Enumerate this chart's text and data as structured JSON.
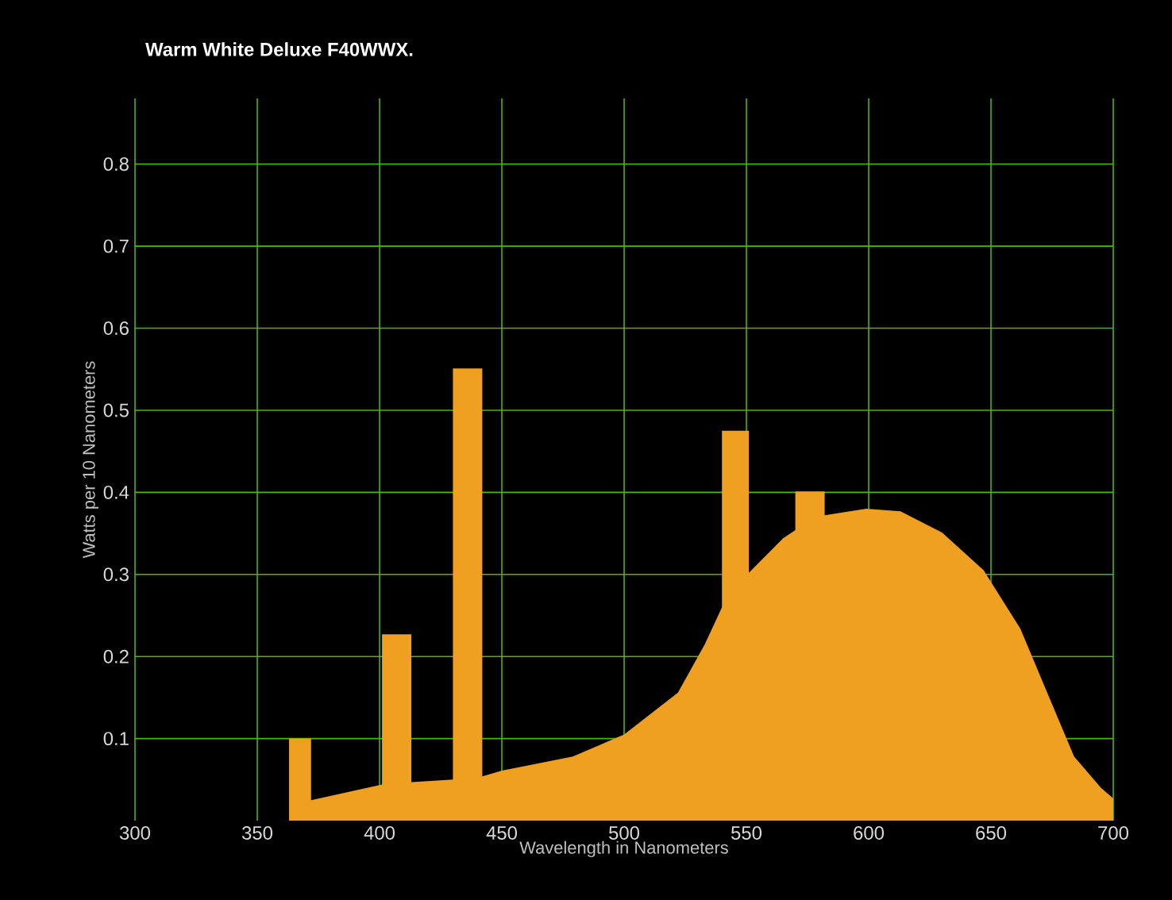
{
  "chart_data": {
    "type": "area",
    "title": "Warm White Deluxe F40WWX.",
    "xlabel": "Wavelength in Nanometers",
    "ylabel": "Watts per 10 Nanometers",
    "xlim": [
      300,
      700
    ],
    "ylim": [
      0,
      0.88
    ],
    "xticks": [
      300,
      350,
      400,
      450,
      500,
      550,
      600,
      650,
      700
    ],
    "yticks": [
      0.1,
      0.2,
      0.3,
      0.4,
      0.5,
      0.6,
      0.7,
      0.8
    ],
    "grid": true,
    "x": [
      355,
      363,
      363,
      372,
      372,
      401,
      401,
      413,
      413,
      430,
      430,
      442,
      442,
      450,
      479,
      500,
      522,
      533,
      540,
      540,
      551,
      551,
      565,
      570,
      570,
      582,
      582,
      599,
      613,
      630,
      647,
      662,
      673,
      684,
      695,
      700
    ],
    "series": [
      {
        "color": "#f0a020",
        "values": [
          0.0,
          0.0,
          0.1,
          0.1,
          0.025,
          0.044,
          0.227,
          0.227,
          0.047,
          0.05,
          0.551,
          0.551,
          0.054,
          0.061,
          0.078,
          0.105,
          0.156,
          0.215,
          0.26,
          0.475,
          0.475,
          0.302,
          0.344,
          0.354,
          0.401,
          0.401,
          0.372,
          0.38,
          0.377,
          0.351,
          0.305,
          0.234,
          0.156,
          0.078,
          0.04,
          0.027
        ]
      }
    ]
  }
}
